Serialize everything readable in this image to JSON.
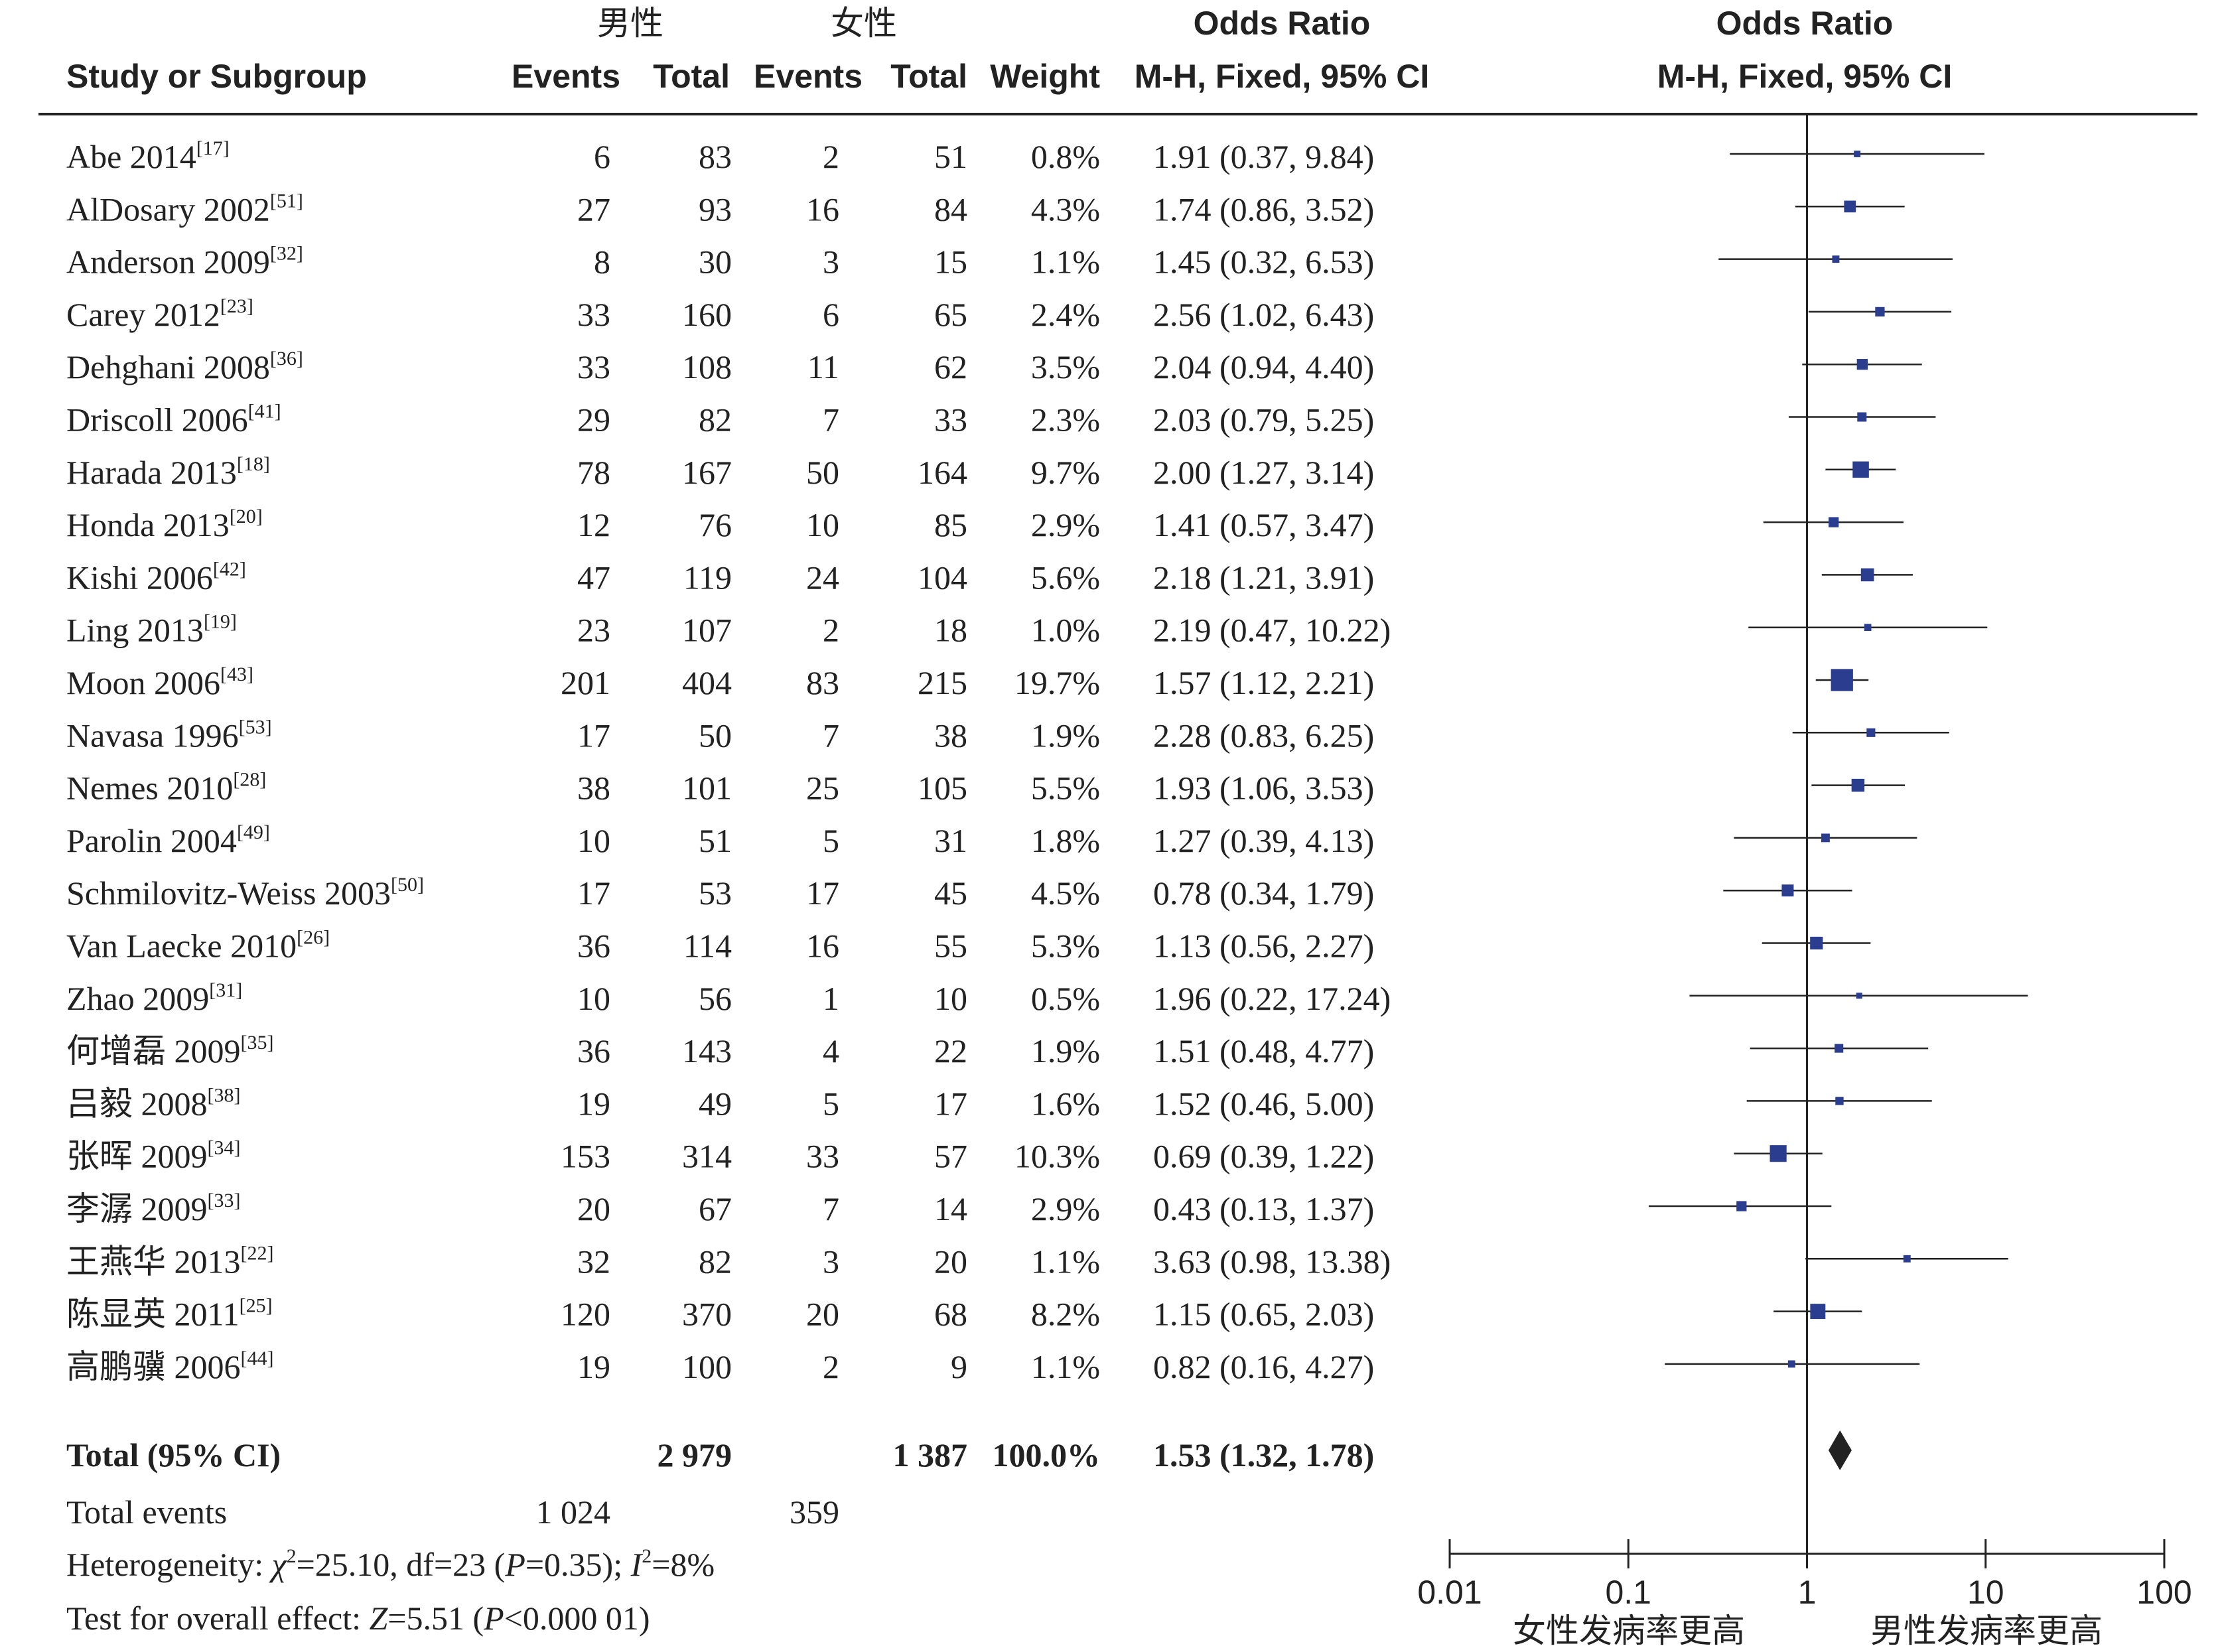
{
  "header": {
    "group1": "男性",
    "group2": "女性",
    "or_title_left": "Odds Ratio",
    "or_method_left": "M-H, Fixed, 95% CI",
    "or_title_right": "Odds Ratio",
    "or_method_right": "M-H, Fixed, 95% CI",
    "col_study": "Study or Subgroup",
    "col_events1": "Events",
    "col_total1": "Total",
    "col_events2": "Events",
    "col_total2": "Total",
    "col_weight": "Weight"
  },
  "total": {
    "label": "Total (95% CI)",
    "total1": "2 979",
    "total2": "1 387",
    "weight": "100.0%",
    "ci_text": "1.53 (1.32, 1.78)"
  },
  "total_events": {
    "label": "Total events",
    "events1": "1 024",
    "events2": "359"
  },
  "heterogeneity": {
    "prefix": "Heterogeneity: ",
    "chi_sym": "χ",
    "chi_sup": "2",
    "chi_val": "=25.10, df=23 (",
    "p_sym": "P",
    "p_val": "=0.35); ",
    "i_sym": "I",
    "i_sup": "2",
    "i_val": "=8%"
  },
  "overall": {
    "prefix": "Test for overall effect: ",
    "z_sym": "Z",
    "z_val": "=5.51 (",
    "p_sym": "P",
    "p_val": "<0.000 01)"
  },
  "chart_data": {
    "type": "forest",
    "x_scale": "log",
    "xlim": [
      0.01,
      100
    ],
    "x_ticks": [
      "0.01",
      "0.1",
      "1",
      "10",
      "100"
    ],
    "favours_left": "女性发病率更高",
    "favours_right": "男性发病率更高",
    "studies": [
      {
        "name": "Abe 2014",
        "ref": "[17]",
        "e1": "6",
        "n1": "83",
        "e2": "2",
        "n2": "51",
        "weight": "0.8%",
        "ci_text": "1.91 (0.37, 9.84)",
        "or": 1.91,
        "lo": 0.37,
        "hi": 9.84,
        "w": 0.8
      },
      {
        "name": "AlDosary 2002",
        "ref": "[51]",
        "e1": "27",
        "n1": "93",
        "e2": "16",
        "n2": "84",
        "weight": "4.3%",
        "ci_text": "1.74 (0.86, 3.52)",
        "or": 1.74,
        "lo": 0.86,
        "hi": 3.52,
        "w": 4.3
      },
      {
        "name": "Anderson 2009",
        "ref": "[32]",
        "e1": "8",
        "n1": "30",
        "e2": "3",
        "n2": "15",
        "weight": "1.1%",
        "ci_text": "1.45 (0.32, 6.53)",
        "or": 1.45,
        "lo": 0.32,
        "hi": 6.53,
        "w": 1.1
      },
      {
        "name": "Carey 2012",
        "ref": "[23]",
        "e1": "33",
        "n1": "160",
        "e2": "6",
        "n2": "65",
        "weight": "2.4%",
        "ci_text": "2.56 (1.02, 6.43)",
        "or": 2.56,
        "lo": 1.02,
        "hi": 6.43,
        "w": 2.4
      },
      {
        "name": "Dehghani 2008",
        "ref": "[36]",
        "e1": "33",
        "n1": "108",
        "e2": "11",
        "n2": "62",
        "weight": "3.5%",
        "ci_text": "2.04 (0.94, 4.40)",
        "or": 2.04,
        "lo": 0.94,
        "hi": 4.4,
        "w": 3.5
      },
      {
        "name": "Driscoll 2006",
        "ref": "[41]",
        "e1": "29",
        "n1": "82",
        "e2": "7",
        "n2": "33",
        "weight": "2.3%",
        "ci_text": "2.03 (0.79, 5.25)",
        "or": 2.03,
        "lo": 0.79,
        "hi": 5.25,
        "w": 2.3
      },
      {
        "name": "Harada 2013",
        "ref": "[18]",
        "e1": "78",
        "n1": "167",
        "e2": "50",
        "n2": "164",
        "weight": "9.7%",
        "ci_text": "2.00 (1.27, 3.14)",
        "or": 2.0,
        "lo": 1.27,
        "hi": 3.14,
        "w": 9.7
      },
      {
        "name": "Honda 2013",
        "ref": "[20]",
        "e1": "12",
        "n1": "76",
        "e2": "10",
        "n2": "85",
        "weight": "2.9%",
        "ci_text": "1.41 (0.57, 3.47)",
        "or": 1.41,
        "lo": 0.57,
        "hi": 3.47,
        "w": 2.9
      },
      {
        "name": "Kishi 2006",
        "ref": "[42]",
        "e1": "47",
        "n1": "119",
        "e2": "24",
        "n2": "104",
        "weight": "5.6%",
        "ci_text": "2.18 (1.21, 3.91)",
        "or": 2.18,
        "lo": 1.21,
        "hi": 3.91,
        "w": 5.6
      },
      {
        "name": "Ling 2013",
        "ref": "[19]",
        "e1": "23",
        "n1": "107",
        "e2": "2",
        "n2": "18",
        "weight": "1.0%",
        "ci_text": "2.19 (0.47, 10.22)",
        "or": 2.19,
        "lo": 0.47,
        "hi": 10.22,
        "w": 1.0
      },
      {
        "name": "Moon 2006",
        "ref": "[43]",
        "e1": "201",
        "n1": "404",
        "e2": "83",
        "n2": "215",
        "weight": "19.7%",
        "ci_text": "1.57 (1.12, 2.21)",
        "or": 1.57,
        "lo": 1.12,
        "hi": 2.21,
        "w": 19.7
      },
      {
        "name": "Navasa 1996",
        "ref": "[53]",
        "e1": "17",
        "n1": "50",
        "e2": "7",
        "n2": "38",
        "weight": "1.9%",
        "ci_text": "2.28 (0.83, 6.25)",
        "or": 2.28,
        "lo": 0.83,
        "hi": 6.25,
        "w": 1.9
      },
      {
        "name": "Nemes 2010",
        "ref": "[28]",
        "e1": "38",
        "n1": "101",
        "e2": "25",
        "n2": "105",
        "weight": "5.5%",
        "ci_text": "1.93 (1.06, 3.53)",
        "or": 1.93,
        "lo": 1.06,
        "hi": 3.53,
        "w": 5.5
      },
      {
        "name": "Parolin 2004",
        "ref": "[49]",
        "e1": "10",
        "n1": "51",
        "e2": "5",
        "n2": "31",
        "weight": "1.8%",
        "ci_text": "1.27 (0.39, 4.13)",
        "or": 1.27,
        "lo": 0.39,
        "hi": 4.13,
        "w": 1.8
      },
      {
        "name": "Schmilovitz-Weiss 2003",
        "ref": "[50]",
        "e1": "17",
        "n1": "53",
        "e2": "17",
        "n2": "45",
        "weight": "4.5%",
        "ci_text": "0.78 (0.34, 1.79)",
        "or": 0.78,
        "lo": 0.34,
        "hi": 1.79,
        "w": 4.5
      },
      {
        "name": "Van Laecke 2010",
        "ref": "[26]",
        "e1": "36",
        "n1": "114",
        "e2": "16",
        "n2": "55",
        "weight": "5.3%",
        "ci_text": "1.13 (0.56, 2.27)",
        "or": 1.13,
        "lo": 0.56,
        "hi": 2.27,
        "w": 5.3
      },
      {
        "name": "Zhao 2009",
        "ref": "[31]",
        "e1": "10",
        "n1": "56",
        "e2": "1",
        "n2": "10",
        "weight": "0.5%",
        "ci_text": "1.96 (0.22, 17.24)",
        "or": 1.96,
        "lo": 0.22,
        "hi": 17.24,
        "w": 0.5
      },
      {
        "name": "何增磊 2009",
        "ref": "[35]",
        "e1": "36",
        "n1": "143",
        "e2": "4",
        "n2": "22",
        "weight": "1.9%",
        "ci_text": "1.51 (0.48, 4.77)",
        "or": 1.51,
        "lo": 0.48,
        "hi": 4.77,
        "w": 1.9
      },
      {
        "name": "吕毅 2008",
        "ref": "[38]",
        "e1": "19",
        "n1": "49",
        "e2": "5",
        "n2": "17",
        "weight": "1.6%",
        "ci_text": "1.52 (0.46, 5.00)",
        "or": 1.52,
        "lo": 0.46,
        "hi": 5.0,
        "w": 1.6
      },
      {
        "name": "张晖 2009",
        "ref": "[34]",
        "e1": "153",
        "n1": "314",
        "e2": "33",
        "n2": "57",
        "weight": "10.3%",
        "ci_text": "0.69 (0.39, 1.22)",
        "or": 0.69,
        "lo": 0.39,
        "hi": 1.22,
        "w": 10.3
      },
      {
        "name": "李潺 2009",
        "ref": "[33]",
        "e1": "20",
        "n1": "67",
        "e2": "7",
        "n2": "14",
        "weight": "2.9%",
        "ci_text": "0.43 (0.13, 1.37)",
        "or": 0.43,
        "lo": 0.13,
        "hi": 1.37,
        "w": 2.9
      },
      {
        "name": "王燕华 2013",
        "ref": "[22]",
        "e1": "32",
        "n1": "82",
        "e2": "3",
        "n2": "20",
        "weight": "1.1%",
        "ci_text": "3.63 (0.98, 13.38)",
        "or": 3.63,
        "lo": 0.98,
        "hi": 13.38,
        "w": 1.1
      },
      {
        "name": "陈显英 2011",
        "ref": "[25]",
        "e1": "120",
        "n1": "370",
        "e2": "20",
        "n2": "68",
        "weight": "8.2%",
        "ci_text": "1.15 (0.65, 2.03)",
        "or": 1.15,
        "lo": 0.65,
        "hi": 2.03,
        "w": 8.2
      },
      {
        "name": "高鹏骥 2006",
        "ref": "[44]",
        "e1": "19",
        "n1": "100",
        "e2": "2",
        "n2": "9",
        "weight": "1.1%",
        "ci_text": "0.82 (0.16, 4.27)",
        "or": 0.82,
        "lo": 0.16,
        "hi": 4.27,
        "w": 1.1
      }
    ],
    "pooled": {
      "or": 1.53,
      "lo": 1.32,
      "hi": 1.78
    },
    "colors": {
      "square": "#2b3d8f",
      "line": "#222222",
      "diamond": "#222222"
    }
  }
}
